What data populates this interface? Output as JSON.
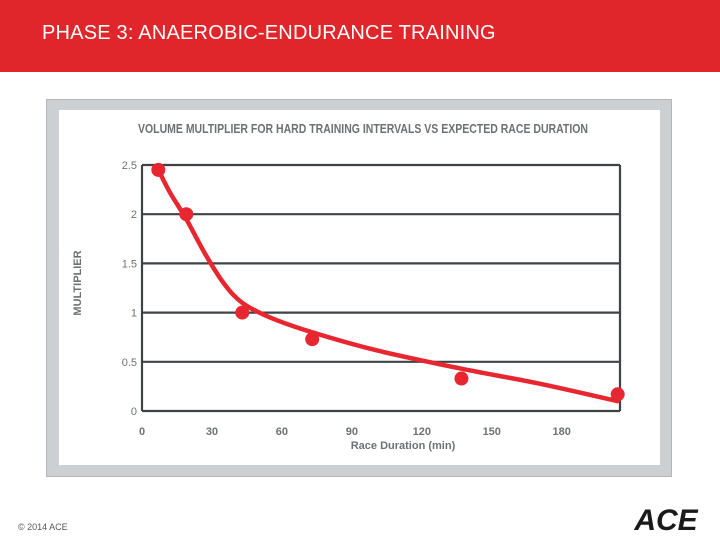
{
  "slide": {
    "title": "PHASE 3: ANAEROBIC-ENDURANCE TRAINING",
    "footer": "© 2014 ACE",
    "logo_text": "ACE",
    "header_color": "#e0262b"
  },
  "chart_data": {
    "type": "scatter",
    "title": "VOLUME MULTIPLIER FOR HARD TRAINING INTERVALS VS EXPECTED RACE DURATION",
    "xlabel": "Race Duration (min)",
    "ylabel": "MULTIPLIER",
    "xlim": [
      0,
      205
    ],
    "ylim": [
      0,
      2.5
    ],
    "x_ticks": [
      0,
      30,
      60,
      90,
      120,
      150,
      180
    ],
    "x_tick_labels": [
      "0",
      "30",
      "60",
      "90",
      "120",
      "150",
      "180"
    ],
    "y_ticks": [
      0,
      0.5,
      1,
      1.5,
      2,
      2.5
    ],
    "y_tick_labels": [
      "0",
      "0.5",
      "1",
      "1.5",
      "2",
      "2.5"
    ],
    "grid": "horizontal",
    "point_color": "#e8262f",
    "series": [
      {
        "name": "data points",
        "x": [
          7,
          19,
          43,
          73,
          137,
          204
        ],
        "y": [
          2.45,
          2.0,
          1.0,
          0.73,
          0.33,
          0.17
        ]
      },
      {
        "name": "trend curve",
        "x": [
          7,
          12,
          19,
          27,
          35,
          43,
          55,
          73,
          100,
          137,
          170,
          204
        ],
        "y": [
          2.45,
          2.22,
          1.95,
          1.6,
          1.3,
          1.1,
          0.95,
          0.8,
          0.62,
          0.43,
          0.28,
          0.1
        ]
      }
    ]
  }
}
